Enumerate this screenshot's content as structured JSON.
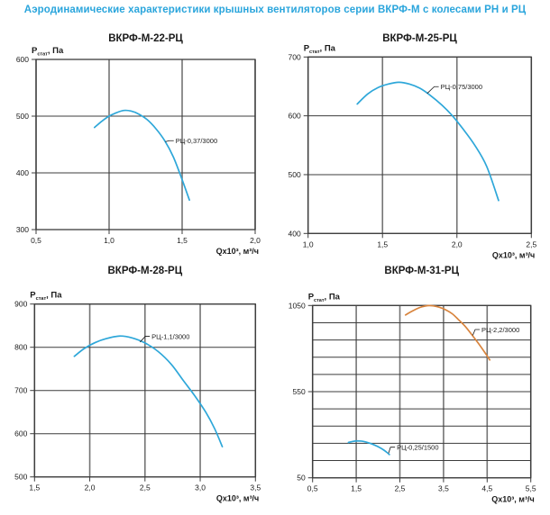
{
  "page_title": "Аэродинамические характеристики крышных вентиляторов серии ВКРФ-М с колесами РН и РЦ",
  "colors": {
    "page_title": "#2aa5dc",
    "text": "#1a1a1a",
    "grid_h": "#3c3c3c",
    "grid_v": "#757575",
    "curve_blue": "#2ea7d9",
    "curve_orange": "#d8843d"
  },
  "chart_data": [
    {
      "type": "line",
      "title": "ВКРФ-М-22-РЦ",
      "ylabel": {
        "base": "P",
        "sub": "стат",
        "unit": ", Па"
      },
      "xlabel": "Qx10³, м³/ч",
      "xlim": [
        0.5,
        2.0
      ],
      "ylim": [
        300,
        600
      ],
      "xticks": [
        {
          "v": 0.5,
          "t": "0,5"
        },
        {
          "v": 1.0,
          "t": "1,0"
        },
        {
          "v": 1.5,
          "t": "1,5"
        },
        {
          "v": 2.0,
          "t": "2,0"
        }
      ],
      "yticks": [
        {
          "v": 600,
          "t": "600"
        },
        {
          "v": 500,
          "t": "500"
        },
        {
          "v": 400,
          "t": "400"
        },
        {
          "v": 300,
          "t": "300"
        }
      ],
      "grid_x": [
        0.5,
        1.0,
        1.5,
        2.0
      ],
      "grid_y": [
        300,
        400,
        500,
        600
      ],
      "series": [
        {
          "name": "РЦ-0,37/3000",
          "color": "#2ea7d9",
          "points": [
            [
              0.9,
              480
            ],
            [
              0.95,
              491
            ],
            [
              1.0,
              500
            ],
            [
              1.05,
              506
            ],
            [
              1.1,
              510
            ],
            [
              1.15,
              509
            ],
            [
              1.2,
              504
            ],
            [
              1.26,
              494
            ],
            [
              1.32,
              478
            ],
            [
              1.38,
              457
            ],
            [
              1.44,
              428
            ],
            [
              1.5,
              388
            ],
            [
              1.55,
              352
            ]
          ],
          "label_xy": [
            1.455,
            452
          ],
          "pointer_xy": [
            1.385,
            455
          ]
        }
      ]
    },
    {
      "type": "line",
      "title": "ВКРФ-М-25-РЦ",
      "ylabel": {
        "base": "P",
        "sub": "стат",
        "unit": ", Па"
      },
      "xlabel": "Qx10³, м³/ч",
      "xlim": [
        1.0,
        2.5
      ],
      "ylim": [
        400,
        700
      ],
      "xticks": [
        {
          "v": 1.0,
          "t": "1,0"
        },
        {
          "v": 1.5,
          "t": "1,5"
        },
        {
          "v": 2.0,
          "t": "2,0"
        },
        {
          "v": 2.5,
          "t": "2,5"
        }
      ],
      "yticks": [
        {
          "v": 700,
          "t": "700"
        },
        {
          "v": 600,
          "t": "600"
        },
        {
          "v": 500,
          "t": "500"
        },
        {
          "v": 400,
          "t": "400"
        }
      ],
      "grid_x": [
        1.0,
        1.5,
        2.0,
        2.5
      ],
      "grid_y": [
        400,
        500,
        600,
        700
      ],
      "series": [
        {
          "name": "РЦ-0,75/3000",
          "color": "#2ea7d9",
          "points": [
            [
              1.33,
              620
            ],
            [
              1.4,
              637
            ],
            [
              1.47,
              648
            ],
            [
              1.54,
              654
            ],
            [
              1.61,
              657
            ],
            [
              1.68,
              654
            ],
            [
              1.75,
              647
            ],
            [
              1.82,
              635
            ],
            [
              1.9,
              618
            ],
            [
              1.97,
              600
            ],
            [
              2.04,
              578
            ],
            [
              2.12,
              550
            ],
            [
              2.2,
              514
            ],
            [
              2.28,
              456
            ]
          ],
          "label_xy": [
            1.89,
            645
          ],
          "pointer_xy": [
            1.8,
            638
          ]
        }
      ]
    },
    {
      "type": "line",
      "title": "ВКРФ-М-28-РЦ",
      "ylabel": {
        "base": "P",
        "sub": "стат",
        "unit": ", Па"
      },
      "xlabel": "Qx10³, м³/ч",
      "xlim": [
        1.5,
        3.5
      ],
      "ylim": [
        500,
        900
      ],
      "xticks": [
        {
          "v": 1.5,
          "t": "1,5"
        },
        {
          "v": 2.0,
          "t": "2,0"
        },
        {
          "v": 2.5,
          "t": "2,5"
        },
        {
          "v": 3.0,
          "t": "3,0"
        },
        {
          "v": 3.5,
          "t": "3,5"
        }
      ],
      "yticks": [
        {
          "v": 900,
          "t": "900"
        },
        {
          "v": 800,
          "t": "800"
        },
        {
          "v": 700,
          "t": "700"
        },
        {
          "v": 600,
          "t": "600"
        },
        {
          "v": 500,
          "t": "500"
        }
      ],
      "grid_x": [
        1.5,
        2.0,
        2.5,
        3.0,
        3.5
      ],
      "grid_y": [
        500,
        600,
        700,
        800,
        900
      ],
      "series": [
        {
          "name": "РЦ-1,1/3000",
          "color": "#2ea7d9",
          "points": [
            [
              1.86,
              779
            ],
            [
              1.95,
              797
            ],
            [
              2.05,
              811
            ],
            [
              2.15,
              820
            ],
            [
              2.27,
              826
            ],
            [
              2.38,
              822
            ],
            [
              2.5,
              810
            ],
            [
              2.62,
              790
            ],
            [
              2.74,
              760
            ],
            [
              2.85,
              722
            ],
            [
              2.95,
              688
            ],
            [
              3.05,
              650
            ],
            [
              3.13,
              612
            ],
            [
              3.2,
              570
            ]
          ],
          "label_xy": [
            2.56,
            819
          ],
          "pointer_xy": [
            2.455,
            812
          ]
        }
      ]
    },
    {
      "type": "line",
      "title": "ВКРФ-М-31-РЦ",
      "ylabel": {
        "base": "P",
        "sub": "стат",
        "unit": ", Па"
      },
      "xlabel": "Qx10³, м³/ч",
      "xlim": [
        0.5,
        5.5
      ],
      "ylim": [
        50,
        1050
      ],
      "xticks": [
        {
          "v": 0.5,
          "t": "0,5"
        },
        {
          "v": 1.5,
          "t": "1,5"
        },
        {
          "v": 2.5,
          "t": "2,5"
        },
        {
          "v": 3.5,
          "t": "3,5"
        },
        {
          "v": 4.5,
          "t": "4,5"
        },
        {
          "v": 5.5,
          "t": "5,5"
        }
      ],
      "yticks": [
        {
          "v": 1050,
          "t": "1050"
        },
        {
          "v": 550,
          "t": "550"
        },
        {
          "v": 50,
          "t": "50"
        }
      ],
      "grid_x": [
        0.5,
        1.5,
        2.5,
        3.5,
        4.5,
        5.5
      ],
      "grid_y": [
        50,
        150,
        250,
        350,
        450,
        550,
        650,
        750,
        850,
        950,
        1050
      ],
      "series": [
        {
          "name": "РЦ-2,2/3000",
          "color": "#d8843d",
          "points": [
            [
              2.63,
              995
            ],
            [
              2.75,
              1013
            ],
            [
              2.88,
              1030
            ],
            [
              3.0,
              1042
            ],
            [
              3.13,
              1049
            ],
            [
              3.26,
              1048
            ],
            [
              3.4,
              1040
            ],
            [
              3.55,
              1025
            ],
            [
              3.7,
              1002
            ],
            [
              3.85,
              966
            ],
            [
              4.0,
              928
            ],
            [
              4.15,
              880
            ],
            [
              4.3,
              830
            ],
            [
              4.45,
              776
            ],
            [
              4.56,
              734
            ]
          ],
          "label_xy": [
            4.37,
            895
          ],
          "pointer_xy": [
            4.17,
            877
          ]
        },
        {
          "name": "РЦ-0,25/1500",
          "color": "#2ea7d9",
          "points": [
            [
              1.32,
              255
            ],
            [
              1.42,
              261
            ],
            [
              1.52,
              264
            ],
            [
              1.62,
              263
            ],
            [
              1.72,
              258
            ],
            [
              1.82,
              250
            ],
            [
              1.92,
              240
            ],
            [
              2.02,
              228
            ],
            [
              2.12,
              213
            ],
            [
              2.2,
              198
            ],
            [
              2.26,
              185
            ]
          ],
          "label_xy": [
            2.43,
            212
          ],
          "pointer_xy": [
            2.24,
            193
          ]
        }
      ]
    }
  ]
}
